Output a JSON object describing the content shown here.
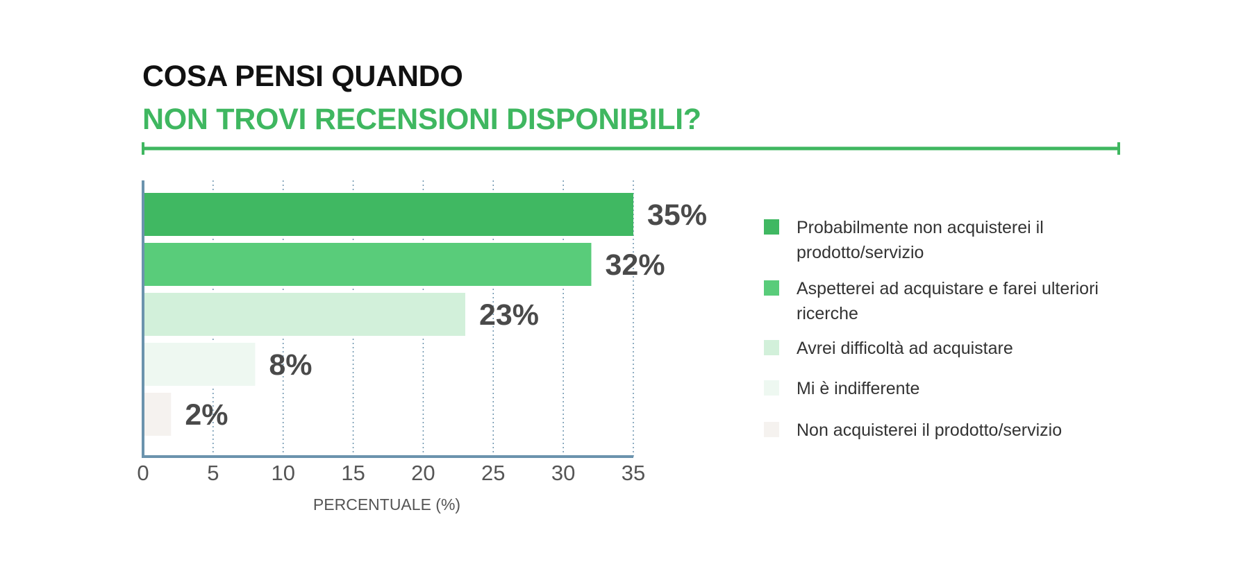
{
  "header": {
    "title_line1": "COSA PENSI QUANDO",
    "title_line2": "NON TROVI RECENSIONI DISPONIBILI?"
  },
  "colors": {
    "accent": "#3fb760",
    "axis": "#6b93ad",
    "grid": "#6b93ad"
  },
  "chart_data": {
    "type": "bar",
    "orientation": "horizontal",
    "title": "COSA PENSI QUANDO NON TROVI RECENSIONI DISPONIBILI?",
    "xlabel": "PERCENTUALE (%)",
    "ylabel": "",
    "xlim": [
      0,
      35
    ],
    "xticks": [
      0,
      5,
      10,
      15,
      20,
      25,
      30,
      35
    ],
    "grid": "vertical dotted",
    "legend_position": "right",
    "categories": [
      "Probabilmente non acquisterei il prodotto/servizio",
      "Aspetterei ad acquistare e farei ulteriori ricerche",
      "Avrei difficoltà ad acquistare",
      "Mi è indifferente",
      "Non acquisterei il prodotto/servizio"
    ],
    "values": [
      35,
      32,
      23,
      8,
      2
    ],
    "value_labels": [
      "35%",
      "32%",
      "23%",
      "8%",
      "2%"
    ],
    "bar_colors": [
      "#40b862",
      "#59cc7a",
      "#d2f0da",
      "#eef8f1",
      "#f5f2ef"
    ]
  }
}
